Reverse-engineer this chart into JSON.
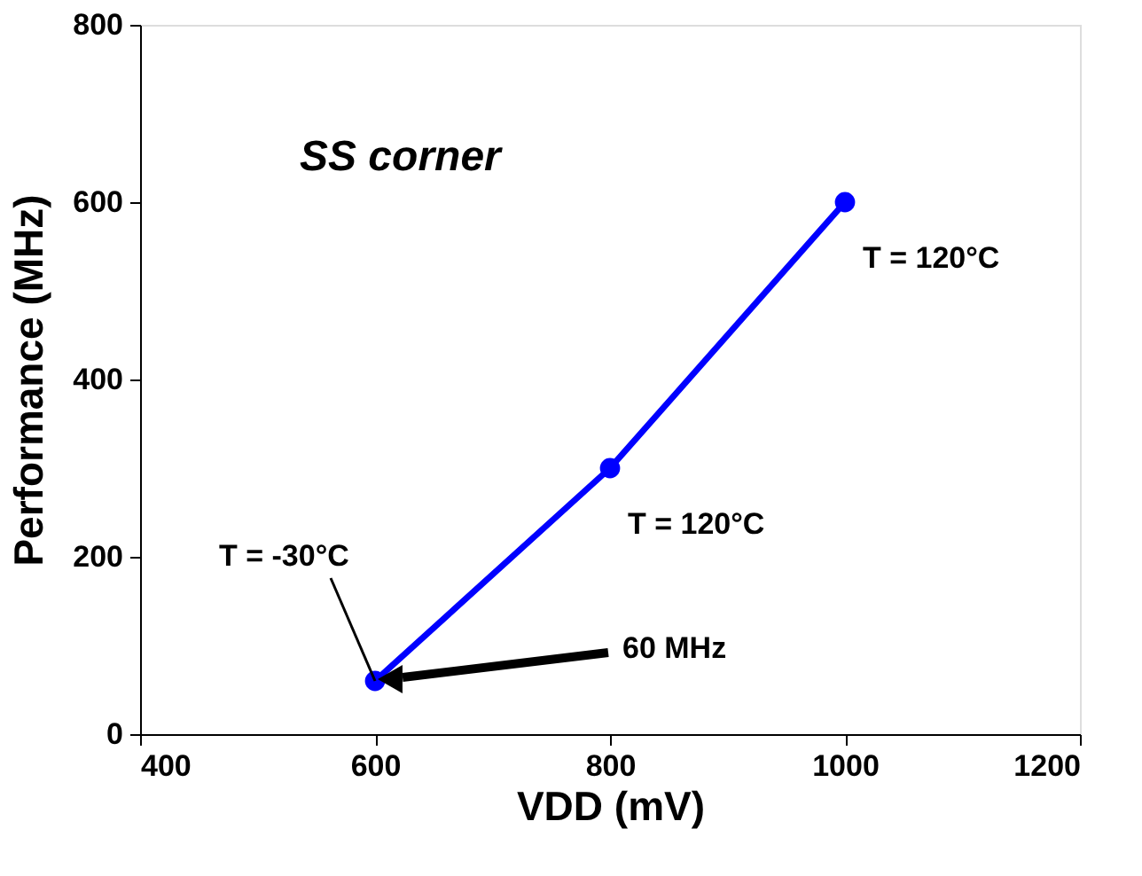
{
  "chart_data": {
    "type": "line",
    "xlabel": "VDD (mV)",
    "ylabel": "Performance (MHz)",
    "x": [
      600,
      800,
      1000
    ],
    "series": [
      {
        "color": "#0000ff",
        "values": [
          60,
          300,
          600
        ]
      }
    ],
    "marker": "circle",
    "line_style": "solid",
    "grid": false,
    "xlim": [
      400,
      1200
    ],
    "xticks": [
      400,
      600,
      800,
      1000,
      1200
    ],
    "ylim": [
      0,
      800
    ],
    "yticks": [
      0,
      200,
      400,
      600,
      800
    ],
    "annotations": [
      "SS corner",
      {
        "text": "T = 120°C",
        "x": 1000,
        "y": 600
      },
      {
        "text": "T = 120°C",
        "x": 800,
        "y": 300
      },
      {
        "text": "T = -30°C",
        "x": 600,
        "y": 60
      },
      "60 MHz"
    ]
  }
}
